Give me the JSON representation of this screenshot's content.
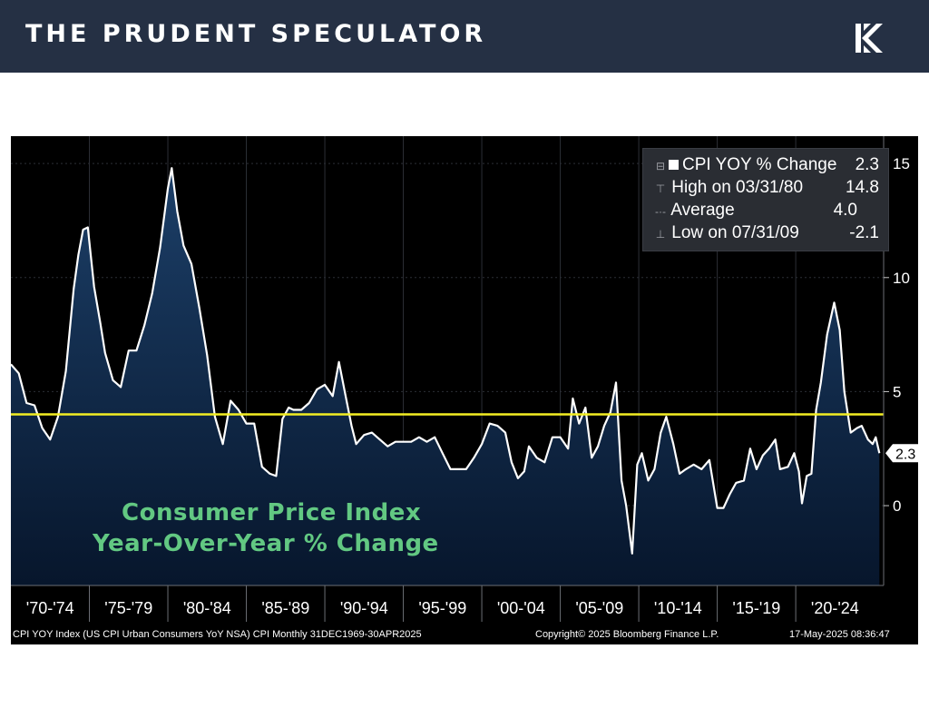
{
  "header": {
    "brand": "THE PRUDENT SPECULATOR",
    "logo_icon": "prudent-speculator-logo-icon"
  },
  "legend": [
    {
      "label": "CPI YOY % Change",
      "value": "2.3"
    },
    {
      "label": "High on 03/31/80",
      "value": "14.8"
    },
    {
      "label": "Average",
      "value": "4.0"
    },
    {
      "label": "Low on 07/31/09",
      "value": "-2.1"
    }
  ],
  "caption": {
    "line1": "Consumer Price Index",
    "line2": "Year-Over-Year % Change"
  },
  "footer": {
    "left": "CPI YOY Index (US CPI Urban Consumers YoY NSA) CPI  Monthly 31DEC1969-30APR2025",
    "center": "Copyright© 2025 Bloomberg Finance L.P.",
    "right": "17-May-2025 08:36:47"
  },
  "chart_data": {
    "type": "area",
    "series": [
      {
        "name": "CPI YOY % Change",
        "last_value": 2.3,
        "x": [
          1970.0,
          1970.5,
          1971.0,
          1971.5,
          1972.0,
          1972.5,
          1973.0,
          1973.5,
          1974.0,
          1974.3,
          1974.6,
          1974.9,
          1975.3,
          1975.7,
          1976.0,
          1976.5,
          1977.0,
          1977.5,
          1978.0,
          1978.5,
          1979.0,
          1979.5,
          1980.0,
          1980.25,
          1980.6,
          1981.0,
          1981.5,
          1982.0,
          1982.5,
          1983.0,
          1983.5,
          1984.0,
          1984.5,
          1985.0,
          1985.5,
          1986.0,
          1986.5,
          1986.9,
          1987.3,
          1987.7,
          1988.0,
          1988.5,
          1989.0,
          1989.5,
          1990.0,
          1990.5,
          1990.9,
          1991.3,
          1991.7,
          1992.0,
          1992.5,
          1993.0,
          1993.5,
          1994.0,
          1994.5,
          1995.0,
          1995.5,
          1996.0,
          1996.5,
          1997.0,
          1997.5,
          1998.0,
          1998.5,
          1999.0,
          1999.5,
          2000.0,
          2000.5,
          2001.0,
          2001.5,
          2001.9,
          2002.3,
          2002.7,
          2003.0,
          2003.5,
          2004.0,
          2004.5,
          2005.0,
          2005.5,
          2005.8,
          2006.2,
          2006.6,
          2007.0,
          2007.4,
          2007.8,
          2008.2,
          2008.55,
          2008.9,
          2009.2,
          2009.58,
          2009.9,
          2010.2,
          2010.6,
          2011.0,
          2011.4,
          2011.75,
          2012.2,
          2012.6,
          2013.0,
          2013.5,
          2014.0,
          2014.5,
          2015.0,
          2015.4,
          2015.8,
          2016.2,
          2016.7,
          2017.1,
          2017.5,
          2017.9,
          2018.3,
          2018.7,
          2019.0,
          2019.5,
          2019.9,
          2020.2,
          2020.4,
          2020.7,
          2021.0,
          2021.3,
          2021.6,
          2022.0,
          2022.45,
          2022.8,
          2023.1,
          2023.5,
          2023.9,
          2024.2,
          2024.6,
          2024.9,
          2025.1,
          2025.33
        ],
        "values": [
          6.2,
          5.8,
          4.5,
          4.4,
          3.4,
          2.9,
          3.9,
          5.9,
          9.5,
          11.0,
          12.1,
          12.2,
          9.6,
          8.0,
          6.7,
          5.5,
          5.2,
          6.8,
          6.8,
          7.9,
          9.3,
          11.3,
          13.9,
          14.8,
          12.9,
          11.4,
          10.6,
          8.7,
          6.6,
          3.9,
          2.7,
          4.6,
          4.2,
          3.6,
          3.6,
          1.7,
          1.4,
          1.3,
          3.8,
          4.3,
          4.2,
          4.2,
          4.5,
          5.1,
          5.3,
          4.8,
          6.3,
          4.9,
          3.5,
          2.7,
          3.1,
          3.2,
          2.9,
          2.6,
          2.8,
          2.8,
          2.8,
          3.0,
          2.8,
          3.0,
          2.3,
          1.6,
          1.6,
          1.6,
          2.1,
          2.7,
          3.6,
          3.5,
          3.2,
          1.9,
          1.2,
          1.5,
          2.6,
          2.1,
          1.9,
          3.0,
          3.0,
          2.5,
          4.7,
          3.6,
          4.3,
          2.1,
          2.6,
          3.5,
          4.1,
          5.4,
          1.1,
          0.0,
          -2.1,
          1.8,
          2.3,
          1.1,
          1.6,
          3.2,
          3.9,
          2.7,
          1.4,
          1.6,
          1.8,
          1.6,
          2.0,
          -0.1,
          -0.1,
          0.5,
          1.0,
          1.1,
          2.5,
          1.6,
          2.2,
          2.5,
          2.9,
          1.6,
          1.7,
          2.3,
          1.5,
          0.1,
          1.3,
          1.4,
          4.2,
          5.4,
          7.5,
          8.9,
          7.7,
          5.0,
          3.2,
          3.4,
          3.5,
          2.9,
          2.7,
          3.0,
          2.3
        ]
      },
      {
        "name": "Average",
        "value": 4.0
      }
    ],
    "x_tick_labels": [
      "'70-'74",
      "'75-'79",
      "'80-'84",
      "'85-'89",
      "'90-'94",
      "'95-'99",
      "'00-'04",
      "'05-'09",
      "'10-'14",
      "'15-'19",
      "'20-'24"
    ],
    "y_ticks": [
      0,
      5,
      10,
      15
    ],
    "ylim": [
      -3.5,
      16.2
    ],
    "xlim": [
      1970.0,
      2025.6
    ],
    "last_value_label": "2.3",
    "high": {
      "date": "03/31/80",
      "value": 14.8
    },
    "low": {
      "date": "07/31/09",
      "value": -2.1
    },
    "colors": {
      "line": "#ffffff",
      "fill_top": "#1c3f68",
      "fill_bottom": "#07162c",
      "average": "#f3ee23",
      "background": "#000000",
      "grid": "#2c2f36",
      "caption": "#62c882"
    },
    "legend_position": "top-right",
    "grid": true
  }
}
